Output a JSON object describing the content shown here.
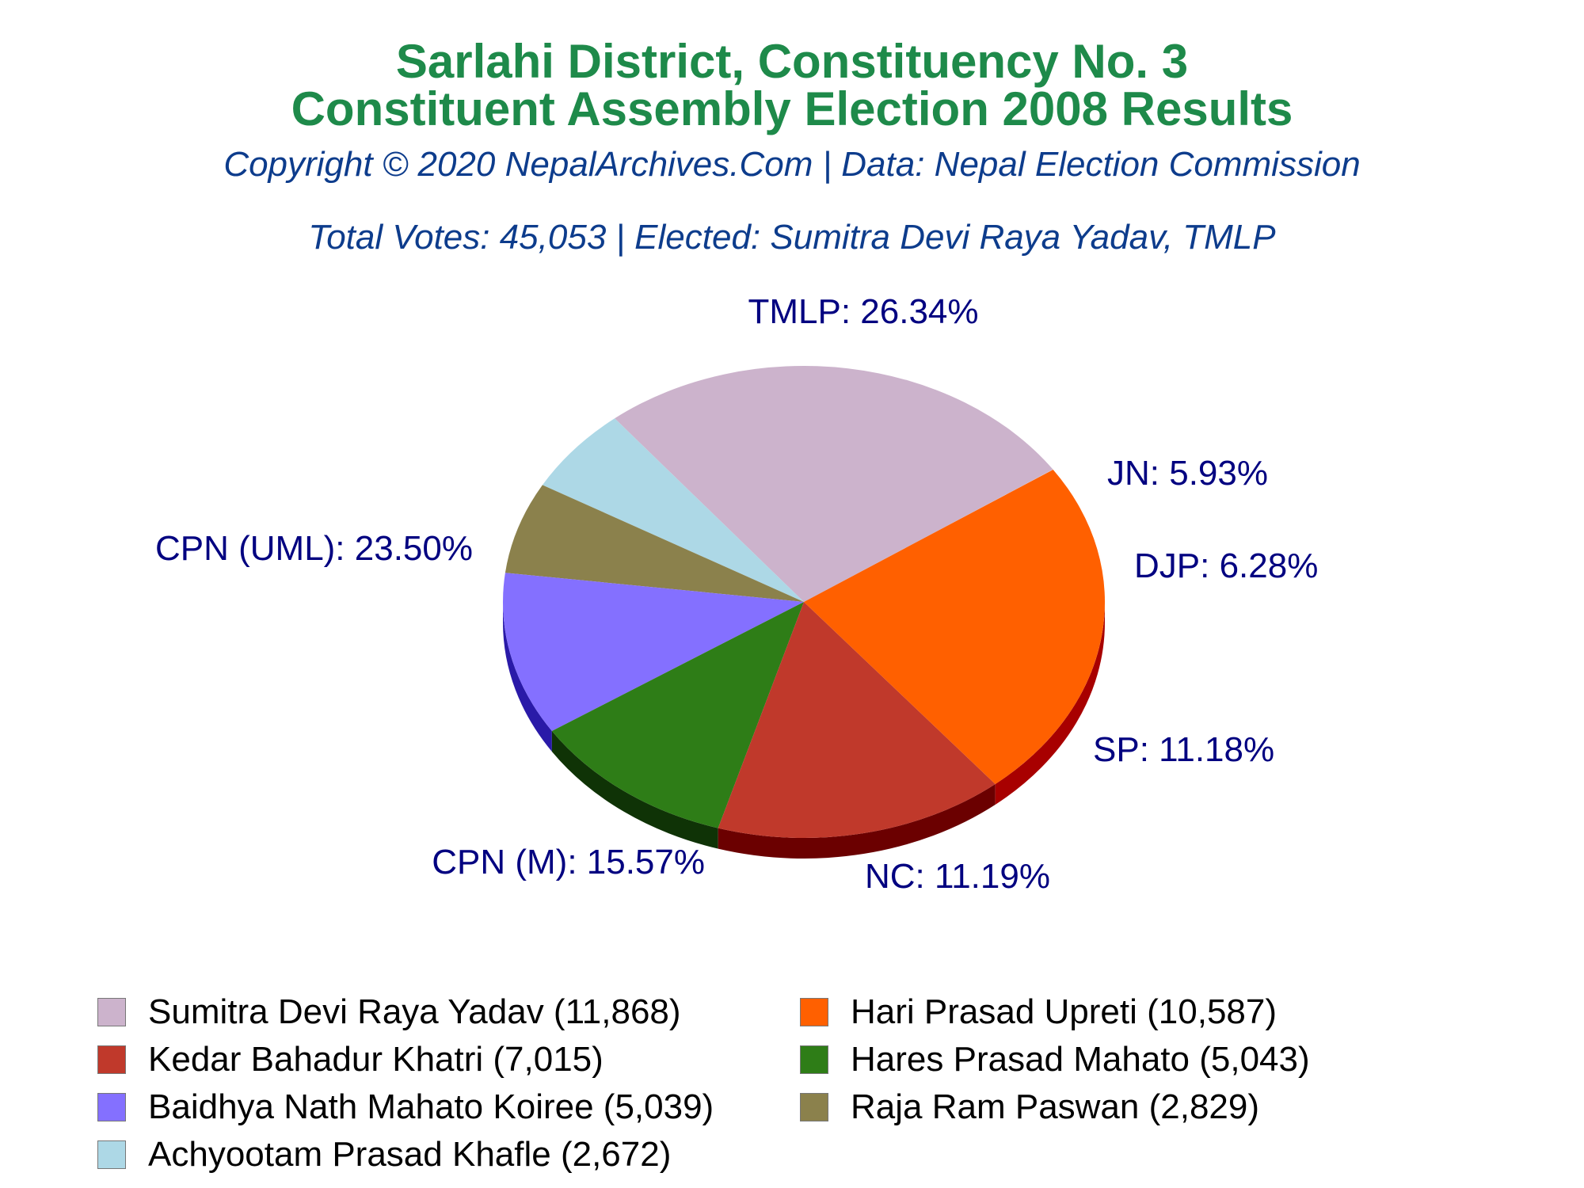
{
  "title": {
    "line1": "Sarlahi District, Constituency No. 3",
    "line2": "Constituent Assembly Election 2008 Results"
  },
  "copyright": "Copyright © 2020 NepalArchives.Com | Data: Nepal Election Commission",
  "summary": "Total Votes: 45,053 | Elected: Sumitra Devi Raya Yadav, TMLP",
  "colors": {
    "title": "#1e8a4a",
    "subtitle": "#0d3c8c",
    "slice_label": "#000080"
  },
  "chart_data": {
    "type": "pie",
    "style": "3d",
    "total_votes": 45053,
    "slices": [
      {
        "party": "TMLP",
        "label": "TMLP: 26.34%",
        "percent": 26.34,
        "candidate": "Sumitra Devi Raya Yadav",
        "votes": 11868,
        "legend": "Sumitra Devi Raya Yadav (11,868)",
        "color": "#ccb3cc",
        "side": "#9c839c"
      },
      {
        "party": "JN",
        "label": "JN: 5.93%",
        "percent": 5.93,
        "candidate": "Achyootam Prasad Khafle",
        "votes": 2672,
        "legend": "Achyootam Prasad Khafle (2,672)",
        "color": "#add8e6",
        "side": "#7da8b6"
      },
      {
        "party": "DJP",
        "label": "DJP: 6.28%",
        "percent": 6.28,
        "candidate": "Raja Ram Paswan",
        "votes": 2829,
        "legend": "Raja Ram Paswan (2,829)",
        "color": "#8b814c",
        "side": "#5b511c"
      },
      {
        "party": "SP",
        "label": "SP: 11.18%",
        "percent": 11.18,
        "candidate": "Baidhya Nath Mahato Koiree",
        "votes": 5039,
        "legend": "Baidhya Nath Mahato Koiree (5,039)",
        "color": "#8470ff",
        "side": "#2a1aa8"
      },
      {
        "party": "NC",
        "label": "NC: 11.19%",
        "percent": 11.19,
        "candidate": "Hares Prasad Mahato",
        "votes": 5043,
        "legend": "Hares Prasad Mahato (5,043)",
        "color": "#2e7d17",
        "side": "#0f3306"
      },
      {
        "party": "CPN (M)",
        "label": "CPN (M): 15.57%",
        "percent": 15.57,
        "candidate": "Kedar Bahadur Khatri",
        "votes": 7015,
        "legend": "Kedar Bahadur Khatri (7,015)",
        "color": "#c0392b",
        "side": "#6b0000"
      },
      {
        "party": "CPN (UML)",
        "label": "CPN (UML): 23.50%",
        "percent": 23.5,
        "candidate": "Hari Prasad Upreti",
        "votes": 10587,
        "legend": "Hari Prasad Upreti (10,587)",
        "color": "#ff6000",
        "side": "#a80000"
      }
    ],
    "legend_order": [
      "Sumitra Devi Raya Yadav (11,868)",
      "Hari Prasad Upreti (10,587)",
      "Kedar Bahadur Khatri (7,015)",
      "Hares Prasad Mahato (5,043)",
      "Baidhya Nath Mahato Koiree (5,039)",
      "Raja Ram Paswan (2,829)",
      "Achyootam Prasad Khafle (2,672)"
    ],
    "legend_position": "bottom"
  }
}
